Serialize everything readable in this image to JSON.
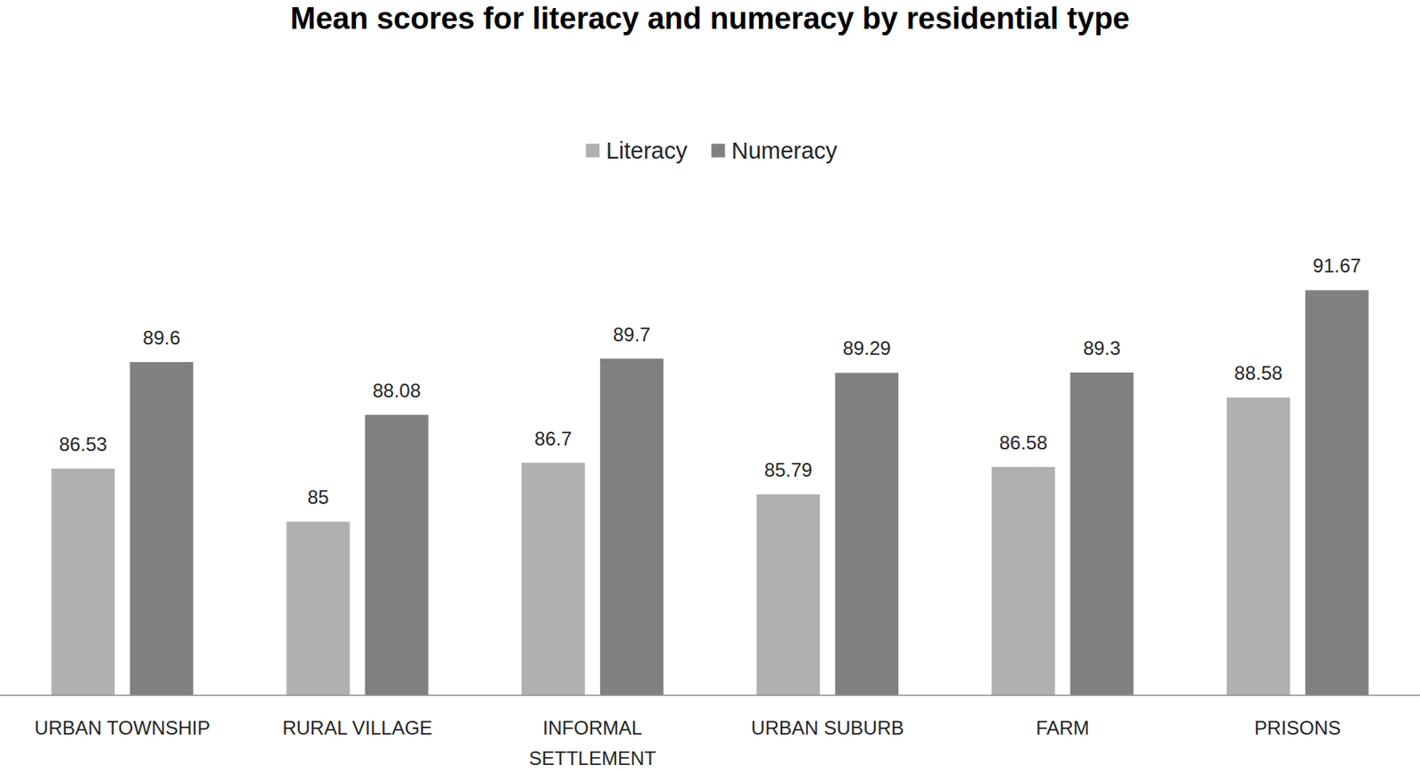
{
  "chart_data": {
    "type": "bar",
    "title": "Mean scores for literacy and numeracy by residential type",
    "categories": [
      "URBAN TOWNSHIP",
      "RURAL VILLAGE",
      "INFORMAL SETTLEMENT",
      "URBAN SUBURB",
      "FARM",
      "PRISONS"
    ],
    "series": [
      {
        "name": "Literacy",
        "color": "#b0b0b0",
        "values": [
          86.53,
          85,
          86.7,
          85.79,
          86.58,
          88.58
        ]
      },
      {
        "name": "Numeracy",
        "color": "#808080",
        "values": [
          89.6,
          88.08,
          89.7,
          89.29,
          89.3,
          91.67
        ]
      }
    ],
    "ylim": [
      80,
      92
    ],
    "data_labels": true,
    "tick_labels": "x",
    "legend": "top",
    "grid": false
  }
}
